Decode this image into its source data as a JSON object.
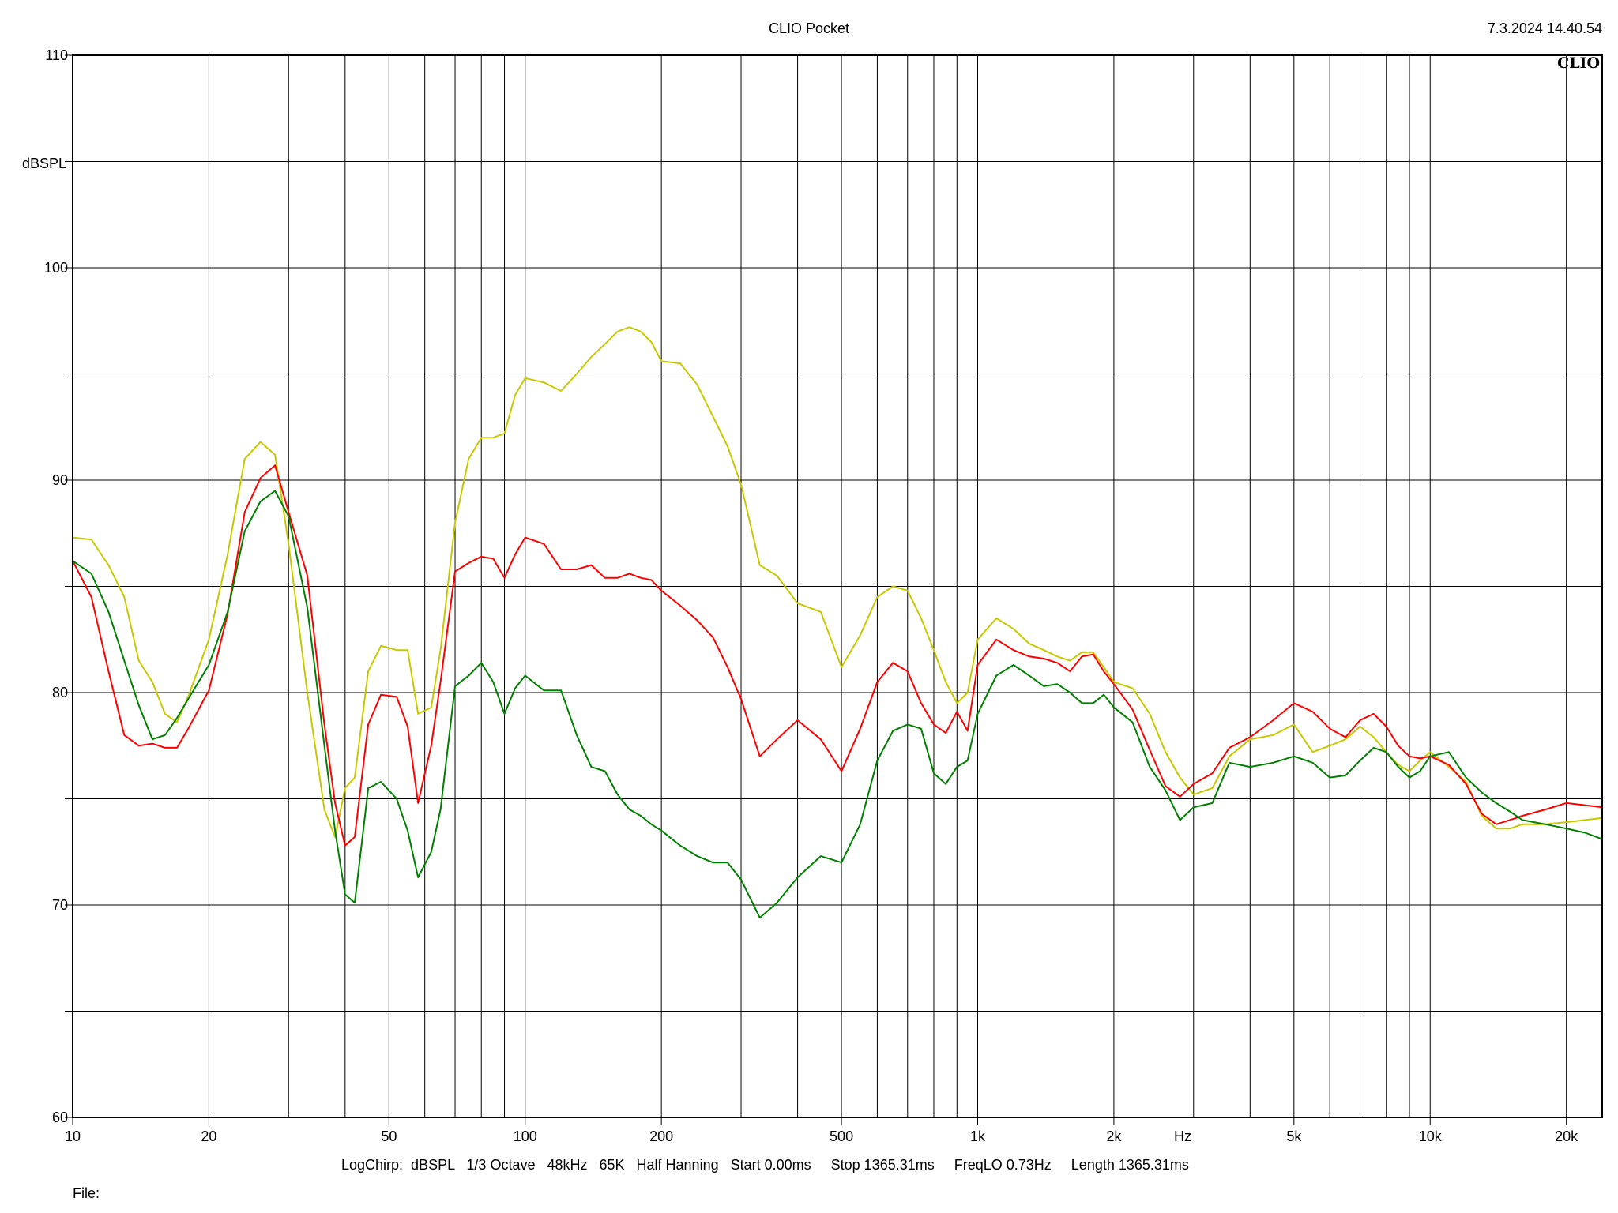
{
  "header": {
    "title": "CLIO Pocket",
    "timestamp": "7.3.2024 14.40.54",
    "logo_text": "CLIO"
  },
  "footer": {
    "info": "LogChirp:  dBSPL   1/3 Octave   48kHz   65K   Half Hanning   Start 0.00ms     Stop 1365.31ms     FreqLO 0.73Hz     Length 1365.31ms",
    "file_label": "File:"
  },
  "chart_data": {
    "type": "line",
    "title": "CLIO Pocket",
    "ylabel": "dBSPL",
    "xlabel": "Hz",
    "xscale": "log",
    "xlim": [
      10,
      24000
    ],
    "ylim": [
      60,
      110
    ],
    "grid": true,
    "x_ticks": [
      {
        "value": 10,
        "label": "10"
      },
      {
        "value": 20,
        "label": "20"
      },
      {
        "value": 50,
        "label": "50"
      },
      {
        "value": 100,
        "label": "100"
      },
      {
        "value": 200,
        "label": "200"
      },
      {
        "value": 500,
        "label": "500"
      },
      {
        "value": 1000,
        "label": "1k"
      },
      {
        "value": 2000,
        "label": "2k"
      },
      {
        "value": 5000,
        "label": "5k"
      },
      {
        "value": 10000,
        "label": "10k"
      },
      {
        "value": 20000,
        "label": "20k"
      }
    ],
    "y_ticks": [
      {
        "value": 110,
        "label": "110"
      },
      {
        "value": 100,
        "label": "100"
      },
      {
        "value": 90,
        "label": "90"
      },
      {
        "value": 80,
        "label": "80"
      },
      {
        "value": 70,
        "label": "70"
      },
      {
        "value": 60,
        "label": "60"
      }
    ],
    "series": [
      {
        "color": "#c8c800",
        "x": [
          10,
          11,
          12,
          13,
          14,
          15,
          16,
          17,
          18,
          20,
          22,
          24,
          26,
          28,
          30,
          33,
          36,
          38,
          40,
          42,
          45,
          48,
          52,
          55,
          58,
          62,
          65,
          70,
          75,
          80,
          85,
          90,
          95,
          100,
          110,
          120,
          130,
          140,
          150,
          160,
          170,
          180,
          190,
          200,
          220,
          240,
          260,
          280,
          300,
          330,
          360,
          400,
          450,
          500,
          550,
          600,
          650,
          700,
          750,
          800,
          850,
          900,
          950,
          1000,
          1100,
          1200,
          1300,
          1400,
          1500,
          1600,
          1700,
          1800,
          1900,
          2000,
          2200,
          2400,
          2600,
          2800,
          3000,
          3300,
          3600,
          4000,
          4500,
          5000,
          5500,
          6000,
          6500,
          7000,
          7500,
          8000,
          8500,
          9000,
          9500,
          10000,
          11000,
          12000,
          13000,
          14000,
          15000,
          16000,
          18000,
          20000,
          22000,
          24000
        ],
        "y": [
          87.3,
          87.2,
          86,
          84.5,
          81.5,
          80.5,
          79,
          78.6,
          79.8,
          82.5,
          86.5,
          91,
          91.8,
          91.2,
          87,
          80,
          74.5,
          73.2,
          75.5,
          76,
          81,
          82.2,
          82,
          82,
          79,
          79.3,
          82,
          88,
          91,
          92,
          92,
          92.2,
          94,
          94.8,
          94.6,
          94.2,
          95,
          95.8,
          96.4,
          97,
          97.2,
          97,
          96.5,
          95.6,
          95.5,
          94.5,
          93,
          91.6,
          89.8,
          86,
          85.5,
          84.2,
          83.8,
          81.2,
          82.7,
          84.5,
          85,
          84.8,
          83.5,
          82,
          80.5,
          79.5,
          80,
          82.5,
          83.5,
          83,
          82.3,
          82,
          81.7,
          81.5,
          81.9,
          81.9,
          81.2,
          80.5,
          80.2,
          79,
          77.2,
          76,
          75.2,
          75.5,
          77,
          77.8,
          78,
          78.5,
          77.2,
          77.5,
          77.8,
          78.4,
          77.9,
          77.2,
          76.6,
          76.3,
          76.8,
          77.2,
          76.5,
          75.8,
          74.2,
          73.6,
          73.6,
          73.8,
          73.8,
          73.9,
          74.0,
          74.1
        ]
      },
      {
        "color": "#ff0000",
        "x": [
          10,
          11,
          12,
          13,
          14,
          15,
          16,
          17,
          18,
          20,
          22,
          24,
          26,
          28,
          30,
          33,
          36,
          38,
          40,
          42,
          45,
          48,
          52,
          55,
          58,
          62,
          65,
          70,
          75,
          80,
          85,
          90,
          95,
          100,
          110,
          120,
          130,
          140,
          150,
          160,
          170,
          180,
          190,
          200,
          220,
          240,
          260,
          280,
          300,
          330,
          360,
          400,
          450,
          500,
          550,
          600,
          650,
          700,
          750,
          800,
          850,
          900,
          950,
          1000,
          1100,
          1200,
          1300,
          1400,
          1500,
          1600,
          1700,
          1800,
          1900,
          2000,
          2200,
          2400,
          2600,
          2800,
          3000,
          3300,
          3600,
          4000,
          4500,
          5000,
          5500,
          6000,
          6500,
          7000,
          7500,
          8000,
          8500,
          9000,
          9500,
          10000,
          11000,
          12000,
          13000,
          14000,
          15000,
          16000,
          18000,
          20000,
          22000,
          24000
        ],
        "y": [
          86.2,
          84.5,
          81,
          78,
          77.5,
          77.6,
          77.4,
          77.4,
          78.3,
          80.1,
          83.7,
          88.5,
          90.1,
          90.7,
          88.5,
          85.5,
          78.5,
          74.8,
          72.8,
          73.2,
          78.5,
          79.9,
          79.8,
          78.4,
          74.8,
          77.5,
          80.5,
          85.7,
          86.1,
          86.4,
          86.3,
          85.4,
          86.5,
          87.3,
          87.0,
          85.8,
          85.8,
          86.0,
          85.4,
          85.4,
          85.6,
          85.4,
          85.3,
          84.8,
          84.1,
          83.4,
          82.6,
          81.2,
          79.7,
          77.0,
          77.8,
          78.7,
          77.8,
          76.3,
          78.3,
          80.5,
          81.4,
          81.0,
          79.5,
          78.5,
          78.1,
          79.1,
          78.2,
          81.3,
          82.5,
          82.0,
          81.7,
          81.6,
          81.4,
          81.0,
          81.7,
          81.8,
          81.0,
          80.4,
          79.2,
          77.3,
          75.6,
          75.1,
          75.7,
          76.2,
          77.4,
          77.9,
          78.7,
          79.5,
          79.1,
          78.3,
          77.9,
          78.7,
          79.0,
          78.4,
          77.5,
          77.0,
          76.9,
          77.0,
          76.6,
          75.7,
          74.3,
          73.8,
          74.0,
          74.2,
          74.5,
          74.8,
          74.7,
          74.6
        ]
      },
      {
        "color": "#008000",
        "x": [
          10,
          11,
          12,
          13,
          14,
          15,
          16,
          17,
          18,
          20,
          22,
          24,
          26,
          28,
          30,
          33,
          36,
          38,
          40,
          42,
          45,
          48,
          52,
          55,
          58,
          62,
          65,
          70,
          75,
          80,
          85,
          90,
          95,
          100,
          110,
          120,
          130,
          140,
          150,
          160,
          170,
          180,
          190,
          200,
          220,
          240,
          260,
          280,
          300,
          330,
          360,
          400,
          450,
          500,
          550,
          600,
          650,
          700,
          750,
          800,
          850,
          900,
          950,
          1000,
          1100,
          1200,
          1300,
          1400,
          1500,
          1600,
          1700,
          1800,
          1900,
          2000,
          2200,
          2400,
          2600,
          2800,
          3000,
          3300,
          3600,
          4000,
          4500,
          5000,
          5500,
          6000,
          6500,
          7000,
          7500,
          8000,
          8500,
          9000,
          9500,
          10000,
          11000,
          12000,
          13000,
          14000,
          15000,
          16000,
          18000,
          20000,
          22000,
          24000
        ],
        "y": [
          86.2,
          85.6,
          83.8,
          81.5,
          79.4,
          77.8,
          78.0,
          78.8,
          79.7,
          81.3,
          83.8,
          87.6,
          89.0,
          89.5,
          88.3,
          84.0,
          77.5,
          73.5,
          70.5,
          70.1,
          75.5,
          75.8,
          75.0,
          73.5,
          71.3,
          72.5,
          74.5,
          80.3,
          80.8,
          81.4,
          80.5,
          79.0,
          80.2,
          80.8,
          80.1,
          80.1,
          78.0,
          76.5,
          76.3,
          75.2,
          74.5,
          74.2,
          73.8,
          73.5,
          72.8,
          72.3,
          72.0,
          72.0,
          71.2,
          69.4,
          70.1,
          71.3,
          72.3,
          72.0,
          73.8,
          76.8,
          78.2,
          78.5,
          78.3,
          76.2,
          75.7,
          76.5,
          76.8,
          79.0,
          80.8,
          81.3,
          80.8,
          80.3,
          80.4,
          80.0,
          79.5,
          79.5,
          79.9,
          79.3,
          78.6,
          76.5,
          75.4,
          74.0,
          74.6,
          74.8,
          76.7,
          76.5,
          76.7,
          77.0,
          76.7,
          76.0,
          76.1,
          76.8,
          77.4,
          77.2,
          76.5,
          76.0,
          76.3,
          77.0,
          77.2,
          76.0,
          75.3,
          74.8,
          74.4,
          74.0,
          73.8,
          73.6,
          73.4,
          73.1
        ]
      }
    ]
  }
}
